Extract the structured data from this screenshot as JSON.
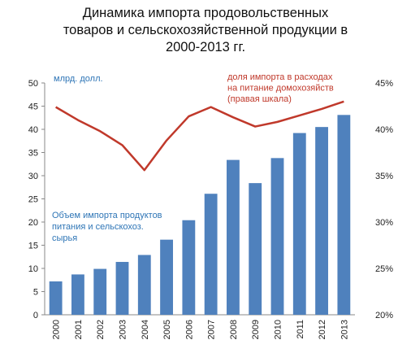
{
  "title_lines": [
    "Динамика импорта продовольственных",
    "товаров и сельскохозяйственной продукции в",
    "2000-2013 гг."
  ],
  "chart_data": {
    "type": "bar",
    "title": "Динамика импорта продовольственных товаров и сельскохозяйственной продукции в 2000-2013 гг.",
    "categories": [
      "2000",
      "2001",
      "2002",
      "2003",
      "2004",
      "2005",
      "2006",
      "2007",
      "2008",
      "2009",
      "2010",
      "2011",
      "2012",
      "2013"
    ],
    "ylabel": "млрд. долл.",
    "ylim": [
      0,
      50
    ],
    "y_ticks": [
      "0",
      "5",
      "10",
      "15",
      "20",
      "25",
      "30",
      "35",
      "40",
      "45",
      "50"
    ],
    "y2lim": [
      20,
      45
    ],
    "y2_ticks": [
      "20%",
      "25%",
      "30%",
      "35%",
      "40%",
      "45%"
    ],
    "series": [
      {
        "name": "Объем импорта продуктов питания и сельскохоз. сырья",
        "type": "bar",
        "axis": "left",
        "color": "#4f81bd",
        "values": [
          7.2,
          8.7,
          9.9,
          11.4,
          12.9,
          16.2,
          20.4,
          26.1,
          33.4,
          28.4,
          33.8,
          39.2,
          40.5,
          43.1
        ]
      },
      {
        "name": "доля импорта в расходах на питание домохозяйств (правая шкала)",
        "type": "line",
        "axis": "right",
        "color": "#c0392b",
        "values": [
          42.4,
          41.0,
          39.8,
          38.3,
          35.6,
          38.8,
          41.4,
          42.4,
          41.3,
          40.3,
          40.8,
          41.5,
          42.2,
          43.0
        ]
      }
    ],
    "annotations": {
      "bar_label_lines": [
        "Объем импорта продуктов",
        "питания и сельскохоз.",
        "сырья"
      ],
      "line_label_lines": [
        "доля импорта в расходах",
        "на питание домохозяйств",
        "(правая шкала)"
      ]
    },
    "grid": false,
    "legend": "none"
  }
}
